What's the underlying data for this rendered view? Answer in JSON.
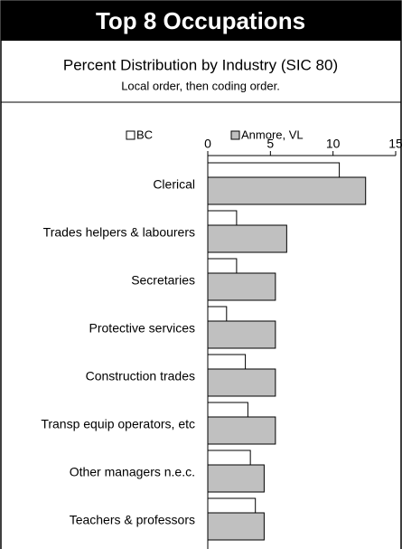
{
  "chart_data": {
    "type": "hbar",
    "title": "Top 8 Occupations",
    "subtitle": "Percent Distribution by Industry (SIC 80)",
    "note": "Local order, then coding order.",
    "categories": [
      "Clerical",
      "Trades helpers & labourers",
      "Secretaries",
      "Protective services",
      "Construction trades",
      "Transp equip operators, etc",
      "Other managers n.e.c.",
      "Teachers & professors"
    ],
    "series": [
      {
        "name": "BC",
        "color": "#ffffff",
        "values": [
          10.5,
          2.3,
          2.3,
          1.5,
          3.0,
          3.2,
          3.4,
          3.8
        ]
      },
      {
        "name": "Anmore, VL",
        "color": "#c0c0c0",
        "values": [
          12.6,
          6.3,
          5.4,
          5.4,
          5.4,
          5.4,
          4.5,
          4.5
        ]
      }
    ],
    "xlim": [
      0,
      15
    ],
    "xticks": [
      0,
      5,
      10,
      15
    ],
    "legend": "top"
  }
}
